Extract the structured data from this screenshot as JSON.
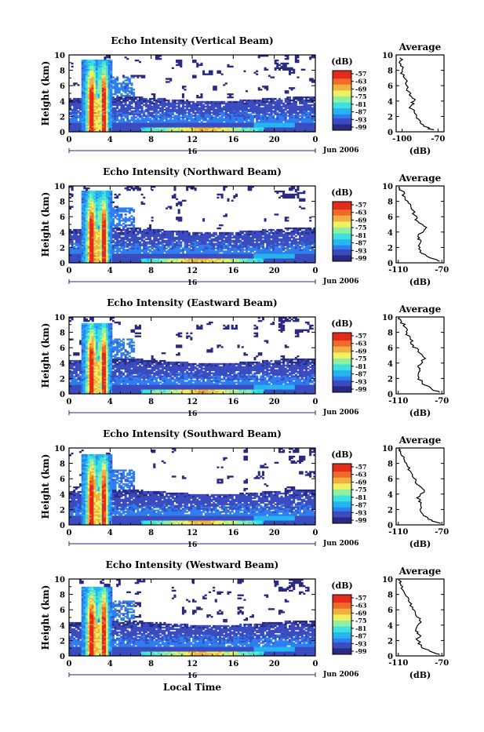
{
  "figure": {
    "xlabel": "Local Time",
    "ylabel": "Height (km)",
    "date_label": "Jun 2006",
    "day_label": "16",
    "x_ticks": [
      "0",
      "4",
      "8",
      "12",
      "16",
      "20",
      "0"
    ],
    "y_ticks": [
      "0",
      "2",
      "4",
      "6",
      "8",
      "10"
    ],
    "colorbar_title": "(dB)",
    "colorbar_ticks": [
      "-57",
      "-63",
      "-69",
      "-75",
      "-81",
      "-87",
      "-93",
      "-99"
    ],
    "profile_title": "Average",
    "profile_xlabel": "(dB)",
    "profile_y_ticks": [
      "0",
      "2",
      "4",
      "6",
      "8",
      "10"
    ]
  },
  "colors": {
    "palette": [
      "#2a2a82",
      "#3a4cc0",
      "#2e7ef0",
      "#25b5f0",
      "#3fe0e0",
      "#8ef0a0",
      "#f0f060",
      "#f0b040",
      "#f06a2a",
      "#e42a1a"
    ]
  },
  "chart_data": [
    {
      "type": "heatmap",
      "title": "Echo Intensity (Vertical Beam)",
      "x_range_hours": [
        0,
        24
      ],
      "y_range_km": [
        0,
        10
      ],
      "z_range_db": [
        -99,
        -57
      ],
      "profile": {
        "x_ticks": [
          "-100",
          "-70"
        ],
        "xlim": [
          -105,
          -65
        ],
        "points": [
          [
            -74,
            0.2
          ],
          [
            -79,
            0.6
          ],
          [
            -85,
            1.2
          ],
          [
            -88,
            1.8
          ],
          [
            -90,
            2.6
          ],
          [
            -93,
            3.3
          ],
          [
            -90,
            4.0
          ],
          [
            -94,
            4.8
          ],
          [
            -96,
            5.6
          ],
          [
            -97,
            6.4
          ],
          [
            -99,
            7.2
          ],
          [
            -100,
            8.0
          ],
          [
            -101,
            8.8
          ],
          [
            -102,
            9.6
          ]
        ]
      }
    },
    {
      "type": "heatmap",
      "title": "Echo Intensity (Northward Beam)",
      "x_range_hours": [
        0,
        24
      ],
      "y_range_km": [
        0,
        10
      ],
      "z_range_db": [
        -99,
        -57
      ],
      "profile": {
        "x_ticks": [
          "-110",
          "-70"
        ],
        "xlim": [
          -112,
          -68
        ],
        "points": [
          [
            -72,
            0.2
          ],
          [
            -80,
            0.6
          ],
          [
            -88,
            1.2
          ],
          [
            -90,
            2.0
          ],
          [
            -89,
            2.8
          ],
          [
            -92,
            3.4
          ],
          [
            -84,
            4.6
          ],
          [
            -92,
            5.4
          ],
          [
            -95,
            6.2
          ],
          [
            -98,
            7.0
          ],
          [
            -101,
            7.8
          ],
          [
            -104,
            8.6
          ],
          [
            -107,
            9.4
          ],
          [
            -109,
            9.9
          ]
        ]
      }
    },
    {
      "type": "heatmap",
      "title": "Echo Intensity (Eastward Beam)",
      "x_range_hours": [
        0,
        24
      ],
      "y_range_km": [
        0,
        10
      ],
      "z_range_db": [
        -99,
        -57
      ],
      "profile": {
        "x_ticks": [
          "-110",
          "-70"
        ],
        "xlim": [
          -112,
          -68
        ],
        "points": [
          [
            -72,
            0.2
          ],
          [
            -80,
            0.7
          ],
          [
            -88,
            1.3
          ],
          [
            -91,
            2.1
          ],
          [
            -90,
            3.0
          ],
          [
            -92,
            3.6
          ],
          [
            -85,
            4.6
          ],
          [
            -92,
            5.5
          ],
          [
            -96,
            6.3
          ],
          [
            -99,
            7.1
          ],
          [
            -102,
            7.9
          ],
          [
            -104,
            8.7
          ],
          [
            -107,
            9.4
          ],
          [
            -109,
            9.9
          ]
        ]
      }
    },
    {
      "type": "heatmap",
      "title": "Echo Intensity (Southward Beam)",
      "x_range_hours": [
        0,
        24
      ],
      "y_range_km": [
        0,
        10
      ],
      "z_range_db": [
        -99,
        -57
      ],
      "profile": {
        "x_ticks": [
          "-110",
          "-70"
        ],
        "xlim": [
          -112,
          -68
        ],
        "points": [
          [
            -71,
            0.2
          ],
          [
            -79,
            0.6
          ],
          [
            -87,
            1.2
          ],
          [
            -90,
            2.0
          ],
          [
            -89,
            2.9
          ],
          [
            -93,
            3.5
          ],
          [
            -86,
            4.5
          ],
          [
            -93,
            5.3
          ],
          [
            -96,
            6.1
          ],
          [
            -99,
            7.0
          ],
          [
            -102,
            7.8
          ],
          [
            -105,
            8.6
          ],
          [
            -108,
            9.4
          ],
          [
            -110,
            9.9
          ]
        ]
      }
    },
    {
      "type": "heatmap",
      "title": "Echo Intensity (Westward Beam)",
      "x_range_hours": [
        0,
        24
      ],
      "y_range_km": [
        0,
        10
      ],
      "z_range_db": [
        -99,
        -57
      ],
      "profile": {
        "x_ticks": [
          "-110",
          "-70"
        ],
        "xlim": [
          -112,
          -68
        ],
        "points": [
          [
            -72,
            0.2
          ],
          [
            -81,
            0.6
          ],
          [
            -89,
            1.2
          ],
          [
            -92,
            2.0
          ],
          [
            -91,
            2.8
          ],
          [
            -94,
            3.4
          ],
          [
            -89,
            4.4
          ],
          [
            -94,
            5.3
          ],
          [
            -97,
            6.1
          ],
          [
            -100,
            7.0
          ],
          [
            -103,
            7.8
          ],
          [
            -106,
            8.6
          ],
          [
            -108,
            9.4
          ],
          [
            -110,
            9.9
          ]
        ]
      }
    }
  ]
}
